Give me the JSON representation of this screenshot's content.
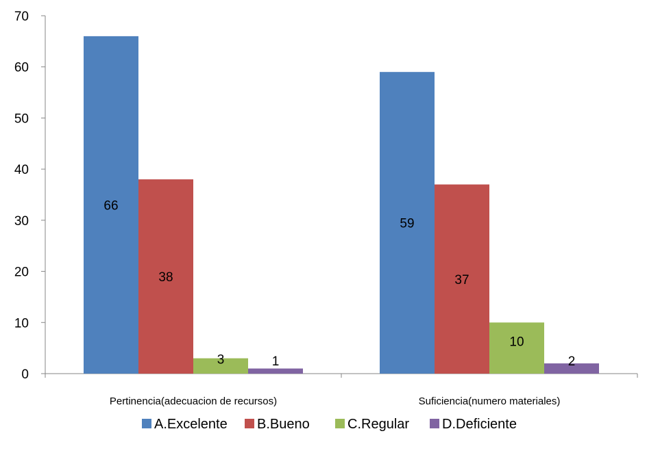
{
  "chart_data": {
    "type": "bar",
    "title": "",
    "xlabel": "",
    "ylabel": "",
    "ylim": [
      0,
      70
    ],
    "yticks": [
      0,
      10,
      20,
      30,
      40,
      50,
      60,
      70
    ],
    "categories": [
      "Pertinencia(adecuacion de recursos)",
      "Suficiencia(numero materiales)"
    ],
    "series": [
      {
        "name": "A.Excelente",
        "values": [
          66,
          59
        ],
        "color": "#4F81BD"
      },
      {
        "name": "B.Bueno",
        "values": [
          38,
          37
        ],
        "color": "#C0504D"
      },
      {
        "name": "C.Regular",
        "values": [
          3,
          10
        ],
        "color": "#9BBB59"
      },
      {
        "name": "D.Deficiente",
        "values": [
          1,
          2
        ],
        "color": "#8064A2"
      }
    ],
    "data_labels": true,
    "grid": false,
    "legend": "bottom"
  }
}
